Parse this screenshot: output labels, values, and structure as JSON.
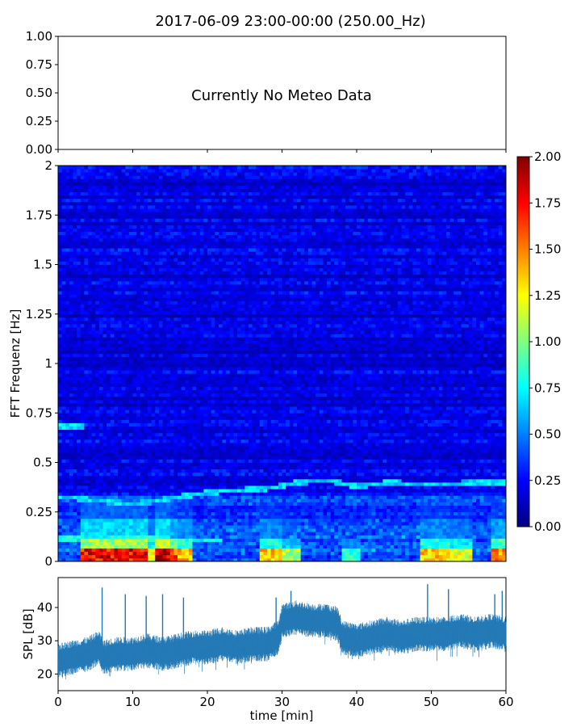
{
  "figure": {
    "title": "2017-06-09 23:00-00:00 (250.00_Hz)",
    "meteo_message": "Currently No Meteo Data"
  },
  "chart_data": [
    {
      "type": "line",
      "panel": "meteo",
      "title": "2017-06-09 23:00-00:00 (250.00_Hz)",
      "xlabel": "",
      "ylabel": "",
      "xlim": [
        0,
        60
      ],
      "ylim": [
        0,
        1
      ],
      "yticks": [
        "0.00",
        "0.25",
        "0.50",
        "0.75",
        "1.00"
      ],
      "annotation": "Currently No Meteo Data",
      "series": []
    },
    {
      "type": "heatmap",
      "panel": "spectrogram",
      "xlabel": "",
      "ylabel": "FFT Frequenz [Hz]",
      "xlim": [
        0,
        60
      ],
      "ylim": [
        0,
        2
      ],
      "yticks": [
        "0",
        "0.25",
        "0.5",
        "0.75",
        "1",
        "1.25",
        "1.5",
        "1.75",
        "2"
      ],
      "colormap": "jet",
      "colorbar": {
        "range": [
          0,
          2
        ],
        "ticks": [
          "0.00",
          "0.25",
          "0.50",
          "0.75",
          "1.00",
          "1.25",
          "1.50",
          "1.75",
          "2.00"
        ]
      },
      "background_level": 0.2,
      "low_frequency_bursts": [
        {
          "t_start": 3.2,
          "t_end": 12,
          "intensity": 1.9
        },
        {
          "t_start": 12,
          "t_end": 13.2,
          "intensity": 1.35
        },
        {
          "t_start": 13,
          "t_end": 15.2,
          "intensity": 2.0
        },
        {
          "t_start": 15.2,
          "t_end": 16,
          "intensity": 1.7
        },
        {
          "t_start": 16,
          "t_end": 17.8,
          "intensity": 1.5
        },
        {
          "t_start": 27,
          "t_end": 29.8,
          "intensity": 1.45
        },
        {
          "t_start": 29.8,
          "t_end": 30.8,
          "intensity": 1.2
        },
        {
          "t_start": 30.8,
          "t_end": 32.7,
          "intensity": 1.15
        },
        {
          "t_start": 38,
          "t_end": 40.5,
          "intensity": 0.9
        },
        {
          "t_start": 48.5,
          "t_end": 52.5,
          "intensity": 1.45
        },
        {
          "t_start": 52.5,
          "t_end": 55.5,
          "intensity": 1.3
        },
        {
          "t_start": 58.2,
          "t_end": 60,
          "intensity": 1.6
        }
      ],
      "tonal_lines": [
        {
          "points": [
            [
              0,
              0.33
            ],
            [
              10,
              0.29
            ],
            [
              20,
              0.35
            ],
            [
              28,
              0.37
            ],
            [
              32,
              0.4
            ],
            [
              36,
              0.41
            ],
            [
              40,
              0.38
            ],
            [
              44,
              0.4
            ],
            [
              50,
              0.39
            ],
            [
              56,
              0.4
            ],
            [
              60,
              0.4
            ]
          ],
          "intensity": 0.75
        },
        {
          "points": [
            [
              0,
              0.68
            ],
            [
              3.5,
              0.68
            ]
          ],
          "intensity": 0.8
        },
        {
          "points": [
            [
              0,
              0.12
            ],
            [
              19,
              0.11
            ],
            [
              22,
              0.11
            ]
          ],
          "intensity": 0.85
        }
      ]
    },
    {
      "type": "line",
      "panel": "spl",
      "xlabel": "time [min]",
      "ylabel": "SPL [dB]",
      "xlim": [
        0,
        60
      ],
      "ylim": [
        15,
        49
      ],
      "xticks": [
        "0",
        "10",
        "20",
        "30",
        "40",
        "50",
        "60"
      ],
      "yticks": [
        "20",
        "30",
        "40"
      ],
      "color": "#1f77b4",
      "series": [
        {
          "x": [
            0,
            2,
            4,
            5.5,
            6,
            8,
            10,
            12,
            14,
            16,
            18,
            20,
            22,
            24,
            26,
            28,
            29.5,
            30,
            32,
            34,
            36,
            37.5,
            38,
            40,
            42,
            44,
            46,
            48,
            50,
            52,
            54,
            56,
            58,
            60
          ],
          "values": [
            24,
            25,
            26,
            28,
            25,
            26,
            26,
            27,
            26,
            27,
            28,
            28,
            29,
            28,
            29,
            29,
            31,
            36,
            37,
            36,
            36,
            35,
            31,
            30,
            31,
            32,
            31,
            32,
            32,
            32,
            33,
            32,
            33,
            32
          ]
        }
      ],
      "spikes": [
        {
          "x": 5.9,
          "peak": 46
        },
        {
          "x": 9.0,
          "peak": 44
        },
        {
          "x": 11.8,
          "peak": 43.5
        },
        {
          "x": 14.0,
          "peak": 44
        },
        {
          "x": 16.8,
          "peak": 43
        },
        {
          "x": 29.2,
          "peak": 43
        },
        {
          "x": 31.2,
          "peak": 45
        },
        {
          "x": 49.5,
          "peak": 47
        },
        {
          "x": 52.3,
          "peak": 45.5
        },
        {
          "x": 58.5,
          "peak": 44
        },
        {
          "x": 59.5,
          "peak": 45
        }
      ]
    }
  ]
}
